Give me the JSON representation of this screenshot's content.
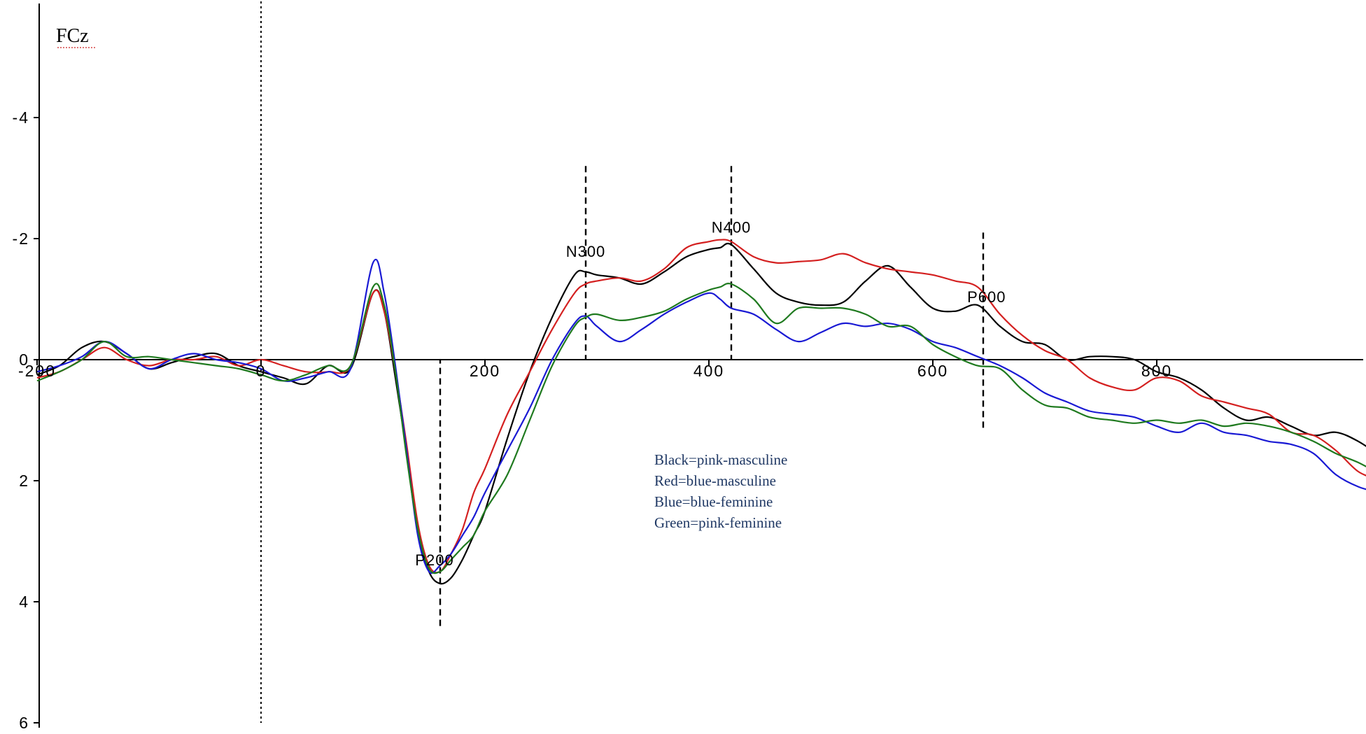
{
  "chart_data": {
    "type": "line",
    "title": "FCz",
    "xlabel": "",
    "ylabel": "",
    "xlim": [
      -200,
      1000
    ],
    "ylim": [
      6,
      -6
    ],
    "y_axis_inverted": true,
    "grid": false,
    "x_ticks": [
      "-200",
      "0",
      "200",
      "400",
      "600",
      "800"
    ],
    "x_tick_values": [
      -200,
      0,
      200,
      400,
      600,
      800
    ],
    "y_ticks": [
      "-4",
      "-2",
      "0",
      "2",
      "4",
      "6"
    ],
    "y_tick_values": [
      -4,
      -2,
      0,
      2,
      4,
      6
    ],
    "vertical_markers": [
      {
        "x": 0,
        "y_range": [
          -6,
          6
        ],
        "style": "dotted"
      },
      {
        "x": 160,
        "y_range": [
          4.4,
          0
        ],
        "style": "dashed",
        "label": "P200",
        "label_at": [
          155,
          3.4
        ]
      },
      {
        "x": 290,
        "y_range": [
          -3.2,
          0
        ],
        "style": "dashed",
        "label": "N300",
        "label_at": [
          290,
          -1.7
        ]
      },
      {
        "x": 420,
        "y_range": [
          -3.2,
          0
        ],
        "style": "dashed",
        "label": "N400",
        "label_at": [
          420,
          -2.1
        ]
      },
      {
        "x": 645,
        "y_range": [
          -2.1,
          1.15
        ],
        "style": "dashed",
        "label": "P600",
        "label_at": [
          648,
          -0.95
        ]
      }
    ],
    "legend": {
      "placement": "center",
      "entries": [
        "Black=pink-masculine",
        "Red=blue-masculine",
        "Blue=blue-feminine",
        "Green=pink-feminine"
      ]
    },
    "x": [
      -200,
      -180,
      -160,
      -140,
      -120,
      -100,
      -80,
      -60,
      -40,
      -20,
      0,
      20,
      40,
      60,
      80,
      100,
      110,
      120,
      130,
      140,
      150,
      160,
      170,
      180,
      190,
      200,
      220,
      240,
      260,
      280,
      290,
      300,
      320,
      340,
      360,
      380,
      400,
      410,
      420,
      440,
      460,
      480,
      500,
      520,
      540,
      560,
      580,
      600,
      620,
      640,
      660,
      680,
      700,
      720,
      740,
      760,
      780,
      800,
      820,
      840,
      860,
      880,
      900,
      920,
      940,
      960,
      980,
      1000
    ],
    "series": [
      {
        "name": "Black=pink-masculine",
        "color": "#000000",
        "values": [
          0.25,
          0.1,
          -0.2,
          -0.3,
          -0.1,
          0.15,
          0.05,
          -0.05,
          -0.1,
          0.1,
          0.2,
          0.3,
          0.4,
          0.1,
          0.15,
          -1.1,
          -0.8,
          0.3,
          1.5,
          2.8,
          3.5,
          3.7,
          3.6,
          3.3,
          2.9,
          2.5,
          1.3,
          0.2,
          -0.7,
          -1.4,
          -1.45,
          -1.4,
          -1.35,
          -1.25,
          -1.45,
          -1.7,
          -1.82,
          -1.85,
          -1.9,
          -1.5,
          -1.1,
          -0.95,
          -0.9,
          -0.95,
          -1.3,
          -1.55,
          -1.2,
          -0.85,
          -0.8,
          -0.9,
          -0.55,
          -0.3,
          -0.25,
          0.0,
          -0.05,
          -0.05,
          0.0,
          0.2,
          0.3,
          0.5,
          0.8,
          1.0,
          0.95,
          1.1,
          1.25,
          1.2,
          1.35,
          1.6
        ]
      },
      {
        "name": "Red=blue-masculine",
        "color": "#d42020",
        "values": [
          0.3,
          0.2,
          0.0,
          -0.2,
          0.0,
          0.1,
          0.0,
          0.0,
          -0.05,
          0.1,
          0.0,
          0.1,
          0.2,
          0.2,
          0.1,
          -1.1,
          -0.8,
          0.2,
          1.4,
          2.7,
          3.4,
          3.5,
          3.2,
          2.8,
          2.2,
          1.8,
          0.9,
          0.2,
          -0.5,
          -1.1,
          -1.25,
          -1.3,
          -1.35,
          -1.3,
          -1.5,
          -1.85,
          -1.95,
          -1.98,
          -1.95,
          -1.7,
          -1.6,
          -1.62,
          -1.65,
          -1.75,
          -1.6,
          -1.5,
          -1.45,
          -1.4,
          -1.3,
          -1.2,
          -0.75,
          -0.4,
          -0.15,
          0.0,
          0.3,
          0.45,
          0.5,
          0.3,
          0.35,
          0.6,
          0.7,
          0.8,
          0.9,
          1.2,
          1.25,
          1.5,
          1.85,
          2.0
        ]
      },
      {
        "name": "Blue=blue-feminine",
        "color": "#1a1ad4",
        "values": [
          0.2,
          0.1,
          -0.05,
          -0.3,
          -0.1,
          0.15,
          0.0,
          -0.1,
          0.0,
          0.05,
          0.15,
          0.35,
          0.3,
          0.2,
          0.15,
          -1.6,
          -1.1,
          0.1,
          1.5,
          2.9,
          3.5,
          3.4,
          3.2,
          2.9,
          2.6,
          2.2,
          1.5,
          0.8,
          0.0,
          -0.6,
          -0.72,
          -0.55,
          -0.3,
          -0.5,
          -0.75,
          -0.95,
          -1.1,
          -1.0,
          -0.85,
          -0.75,
          -0.5,
          -0.3,
          -0.45,
          -0.6,
          -0.55,
          -0.6,
          -0.5,
          -0.3,
          -0.2,
          -0.05,
          0.1,
          0.3,
          0.55,
          0.7,
          0.85,
          0.9,
          0.95,
          1.1,
          1.2,
          1.05,
          1.2,
          1.25,
          1.35,
          1.4,
          1.55,
          1.9,
          2.1,
          2.2
        ]
      },
      {
        "name": "Green=pink-feminine",
        "color": "#1f7a1f",
        "values": [
          0.35,
          0.2,
          0.0,
          -0.3,
          -0.05,
          -0.05,
          0.0,
          0.05,
          0.1,
          0.15,
          0.25,
          0.35,
          0.25,
          0.1,
          0.1,
          -1.2,
          -0.9,
          0.2,
          1.6,
          2.8,
          3.45,
          3.5,
          3.3,
          3.1,
          2.9,
          2.5,
          1.9,
          1.0,
          0.1,
          -0.55,
          -0.7,
          -0.75,
          -0.65,
          -0.7,
          -0.8,
          -1.0,
          -1.15,
          -1.2,
          -1.25,
          -1.0,
          -0.6,
          -0.85,
          -0.85,
          -0.85,
          -0.75,
          -0.55,
          -0.55,
          -0.25,
          -0.05,
          0.1,
          0.15,
          0.5,
          0.75,
          0.8,
          0.95,
          1.0,
          1.05,
          1.0,
          1.05,
          1.0,
          1.1,
          1.05,
          1.1,
          1.2,
          1.35,
          1.55,
          1.7,
          1.9
        ]
      }
    ]
  }
}
